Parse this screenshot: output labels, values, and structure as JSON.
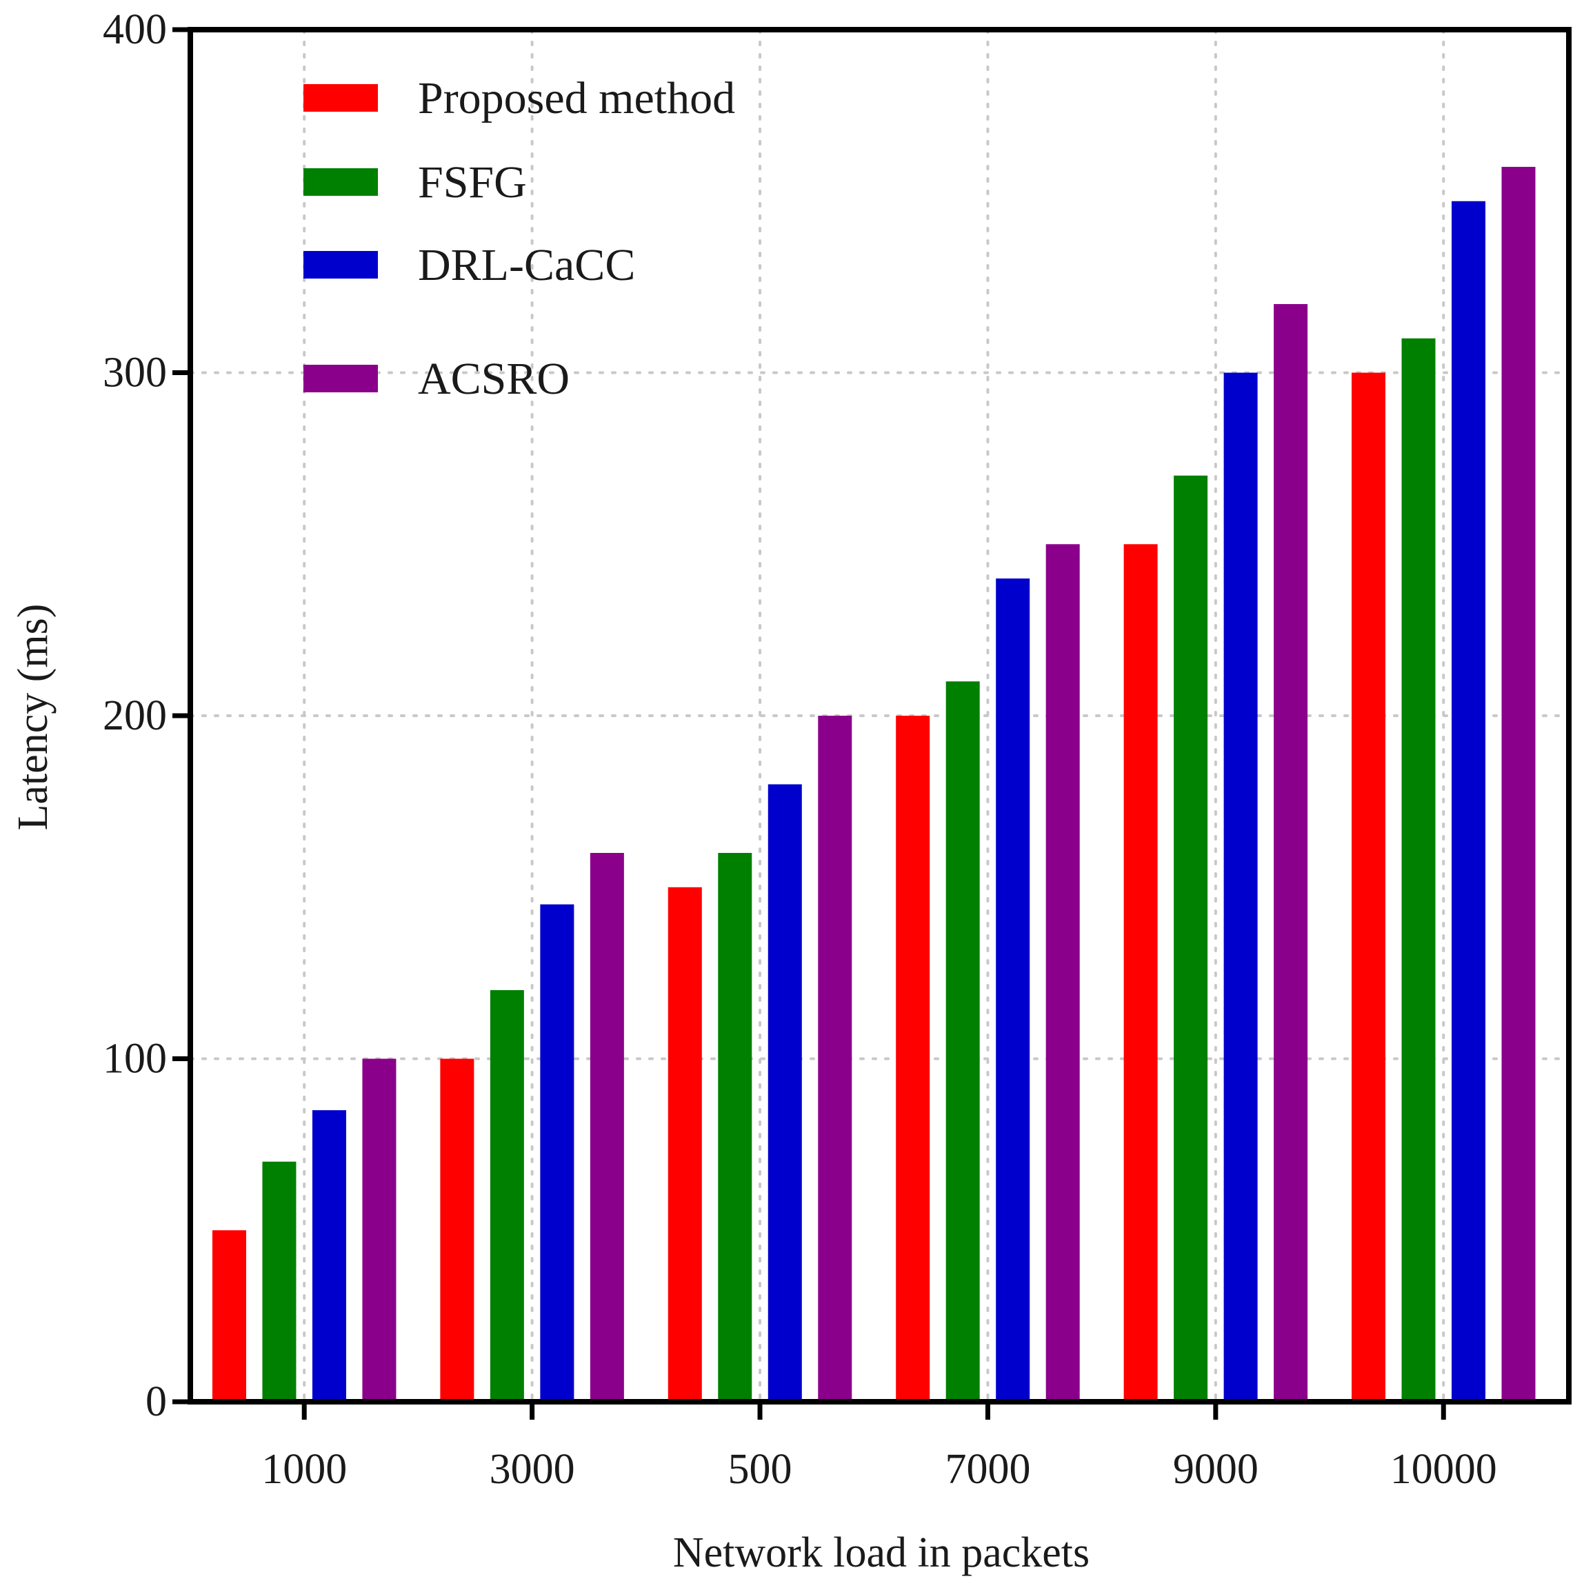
{
  "chart_data": {
    "type": "bar",
    "title": "",
    "xlabel": "Network load in packets",
    "ylabel": "Latency (ms)",
    "categories": [
      "1000",
      "3000",
      "500",
      "7000",
      "9000",
      "10000"
    ],
    "ylim": [
      0,
      400
    ],
    "yticks": [
      0,
      100,
      200,
      300,
      400
    ],
    "grid": true,
    "legend_position": "top-left",
    "series": [
      {
        "name": "Proposed method",
        "color": "#ff0000",
        "values": [
          50,
          100,
          150,
          200,
          250,
          300
        ]
      },
      {
        "name": "FSFG",
        "color": "#008000",
        "values": [
          70,
          120,
          160,
          210,
          270,
          310
        ]
      },
      {
        "name": "DRL-CaCC",
        "color": "#0000cc",
        "values": [
          85,
          145,
          180,
          240,
          300,
          350
        ]
      },
      {
        "name": "ACSRO",
        "color": "#8b008b",
        "values": [
          100,
          160,
          200,
          250,
          320,
          360
        ]
      }
    ]
  }
}
